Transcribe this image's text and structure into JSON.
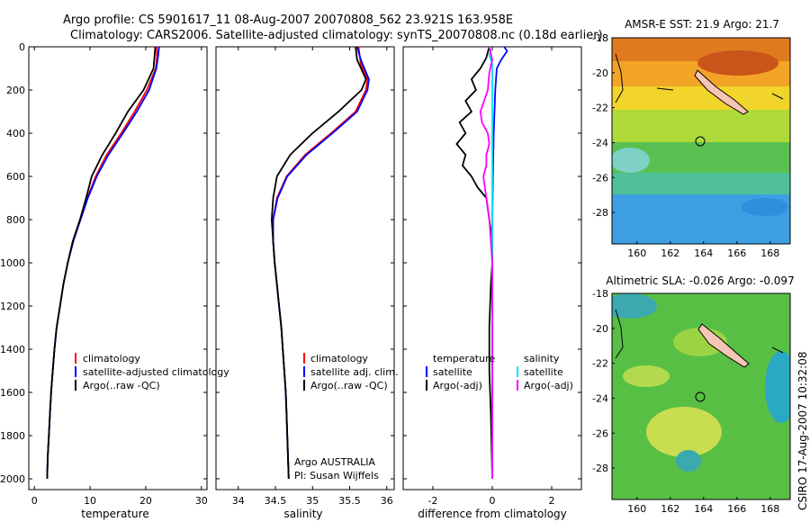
{
  "figure": {
    "title_line1": "Argo profile: CS 5901617_11 08-Aug-2007 20070808_562 23.921S 163.958E",
    "title_line2": "Climatology: CARS2006. Satellite-adjusted climatology: synTS_20070808.nc (0.18d earlier)",
    "credit": "CSIRO 17-Aug-2007 10:32:08"
  },
  "colors": {
    "climatology": "#ff0000",
    "satellite": "#0000ff",
    "argo": "#000000",
    "salinity_satellite": "#00e5ee",
    "salinity_argo": "#ff00ff"
  },
  "chart_data": [
    {
      "type": "line",
      "xlabel": "temperature",
      "xlim": [
        -1,
        31
      ],
      "ylim": [
        2050,
        0
      ],
      "xticks": [
        0,
        10,
        20,
        30
      ],
      "yticks": [
        0,
        200,
        400,
        600,
        800,
        1000,
        1200,
        1400,
        1600,
        1800,
        2000
      ],
      "legend": {
        "entries": [
          "climatology",
          "satellite-adjusted climatology",
          "Argo(..raw -QC)"
        ],
        "position": "lower-center"
      },
      "series": [
        {
          "name": "climatology",
          "color": "#ff0000",
          "points": [
            [
              22.0,
              0
            ],
            [
              22.0,
              50
            ],
            [
              21.8,
              100
            ],
            [
              20.2,
              200
            ],
            [
              18.0,
              300
            ],
            [
              15.6,
              400
            ],
            [
              13.0,
              500
            ],
            [
              11.0,
              600
            ],
            [
              9.5,
              700
            ],
            [
              8.2,
              800
            ],
            [
              6.9,
              900
            ],
            [
              6.0,
              1000
            ],
            [
              5.2,
              1100
            ],
            [
              4.6,
              1200
            ],
            [
              4.0,
              1300
            ],
            [
              3.6,
              1400
            ],
            [
              3.3,
              1500
            ],
            [
              3.0,
              1600
            ],
            [
              2.8,
              1700
            ],
            [
              2.6,
              1800
            ],
            [
              2.4,
              1900
            ],
            [
              2.3,
              2000
            ]
          ]
        },
        {
          "name": "satellite-adjusted climatology",
          "color": "#0000ff",
          "points": [
            [
              22.4,
              0
            ],
            [
              22.2,
              50
            ],
            [
              21.9,
              100
            ],
            [
              20.6,
              200
            ],
            [
              18.4,
              300
            ],
            [
              15.9,
              400
            ],
            [
              13.3,
              500
            ],
            [
              11.2,
              600
            ],
            [
              9.6,
              700
            ],
            [
              8.3,
              800
            ],
            [
              7.0,
              900
            ],
            [
              6.0,
              1000
            ],
            [
              5.2,
              1100
            ],
            [
              4.6,
              1200
            ],
            [
              4.0,
              1300
            ],
            [
              3.6,
              1400
            ],
            [
              3.3,
              1500
            ],
            [
              3.0,
              1600
            ],
            [
              2.8,
              1700
            ],
            [
              2.6,
              1800
            ],
            [
              2.4,
              1900
            ],
            [
              2.3,
              2000
            ]
          ]
        },
        {
          "name": "Argo(..raw -QC)",
          "color": "#000000",
          "points": [
            [
              21.7,
              0
            ],
            [
              21.6,
              40
            ],
            [
              21.4,
              100
            ],
            [
              19.6,
              200
            ],
            [
              16.8,
              300
            ],
            [
              14.6,
              400
            ],
            [
              12.2,
              500
            ],
            [
              10.3,
              600
            ],
            [
              9.3,
              700
            ],
            [
              8.2,
              800
            ],
            [
              6.9,
              900
            ],
            [
              6.0,
              1000
            ],
            [
              5.2,
              1100
            ],
            [
              4.6,
              1200
            ],
            [
              4.0,
              1300
            ],
            [
              3.6,
              1400
            ],
            [
              3.3,
              1500
            ],
            [
              3.0,
              1600
            ],
            [
              2.8,
              1700
            ],
            [
              2.6,
              1800
            ],
            [
              2.4,
              1900
            ],
            [
              2.3,
              2000
            ]
          ]
        }
      ]
    },
    {
      "type": "line",
      "xlabel": "salinity",
      "xlim": [
        33.7,
        36.1
      ],
      "ylim": [
        2050,
        0
      ],
      "xticks": [
        34,
        34.5,
        35,
        35.5,
        36
      ],
      "legend": {
        "entries": [
          "climatology",
          "satellite adj. clim.",
          "Argo(..raw -QC)"
        ],
        "position": "lower-center"
      },
      "annotation": [
        "Argo AUSTRALIA",
        "PI: Susan Wijffels"
      ],
      "series": [
        {
          "name": "climatology",
          "color": "#ff0000",
          "points": [
            [
              35.62,
              0
            ],
            [
              35.65,
              80
            ],
            [
              35.74,
              150
            ],
            [
              35.72,
              200
            ],
            [
              35.58,
              300
            ],
            [
              35.25,
              400
            ],
            [
              34.9,
              500
            ],
            [
              34.65,
              600
            ],
            [
              34.52,
              700
            ],
            [
              34.47,
              800
            ],
            [
              34.47,
              900
            ],
            [
              34.49,
              1000
            ],
            [
              34.52,
              1100
            ],
            [
              34.55,
              1200
            ],
            [
              34.58,
              1300
            ],
            [
              34.6,
              1400
            ],
            [
              34.62,
              1500
            ],
            [
              34.64,
              1600
            ],
            [
              34.65,
              1700
            ],
            [
              34.66,
              1800
            ],
            [
              34.67,
              1900
            ],
            [
              34.68,
              2000
            ]
          ]
        },
        {
          "name": "satellite adj. clim.",
          "color": "#0000ff",
          "points": [
            [
              35.6,
              0
            ],
            [
              35.65,
              60
            ],
            [
              35.76,
              150
            ],
            [
              35.74,
              200
            ],
            [
              35.6,
              300
            ],
            [
              35.27,
              400
            ],
            [
              34.92,
              500
            ],
            [
              34.66,
              600
            ],
            [
              34.53,
              700
            ],
            [
              34.47,
              800
            ],
            [
              34.47,
              900
            ],
            [
              34.49,
              1000
            ],
            [
              34.52,
              1100
            ],
            [
              34.55,
              1200
            ],
            [
              34.58,
              1300
            ],
            [
              34.6,
              1400
            ],
            [
              34.62,
              1500
            ],
            [
              34.64,
              1600
            ],
            [
              34.65,
              1700
            ],
            [
              34.66,
              1800
            ],
            [
              34.67,
              1900
            ],
            [
              34.68,
              2000
            ]
          ]
        },
        {
          "name": "Argo(..raw -QC)",
          "color": "#000000",
          "points": [
            [
              35.58,
              0
            ],
            [
              35.6,
              60
            ],
            [
              35.72,
              150
            ],
            [
              35.66,
              200
            ],
            [
              35.35,
              300
            ],
            [
              35.0,
              400
            ],
            [
              34.7,
              500
            ],
            [
              34.52,
              600
            ],
            [
              34.47,
              700
            ],
            [
              34.45,
              800
            ],
            [
              34.47,
              900
            ],
            [
              34.49,
              1000
            ],
            [
              34.52,
              1100
            ],
            [
              34.55,
              1200
            ],
            [
              34.58,
              1300
            ],
            [
              34.6,
              1400
            ],
            [
              34.62,
              1500
            ],
            [
              34.64,
              1600
            ],
            [
              34.65,
              1700
            ],
            [
              34.66,
              1800
            ],
            [
              34.67,
              1900
            ],
            [
              34.68,
              2000
            ]
          ]
        }
      ]
    },
    {
      "type": "line",
      "xlabel": "difference from climatology",
      "xlim": [
        -3,
        3
      ],
      "ylim": [
        2050,
        0
      ],
      "xticks": [
        -2,
        0,
        2
      ],
      "legend": {
        "groups": [
          {
            "header": "temperature",
            "entries": [
              "satellite",
              "Argo(-adj)"
            ]
          },
          {
            "header": "salinity",
            "entries": [
              "satellite",
              "Argo(-adj)"
            ]
          }
        ],
        "position": "lower-center"
      },
      "series": [
        {
          "name": "temperature satellite",
          "color": "#0000ff",
          "points": [
            [
              0.4,
              0
            ],
            [
              0.5,
              20
            ],
            [
              0.3,
              60
            ],
            [
              0.15,
              100
            ],
            [
              0.1,
              200
            ],
            [
              0.05,
              400
            ],
            [
              0.02,
              600
            ],
            [
              0.0,
              800
            ],
            [
              0.0,
              1000
            ],
            [
              0.0,
              1500
            ],
            [
              0.0,
              2000
            ]
          ]
        },
        {
          "name": "temperature Argo(-adj)",
          "color": "#000000",
          "points": [
            [
              -0.1,
              0
            ],
            [
              -0.2,
              50
            ],
            [
              -0.4,
              100
            ],
            [
              -0.7,
              150
            ],
            [
              -0.55,
              200
            ],
            [
              -0.9,
              250
            ],
            [
              -0.7,
              300
            ],
            [
              -1.1,
              350
            ],
            [
              -0.9,
              400
            ],
            [
              -1.2,
              450
            ],
            [
              -0.9,
              500
            ],
            [
              -1.0,
              550
            ],
            [
              -0.7,
              600
            ],
            [
              -0.5,
              650
            ],
            [
              -0.2,
              700
            ],
            [
              -0.1,
              800
            ],
            [
              0.0,
              900
            ],
            [
              0.0,
              1000
            ],
            [
              -0.05,
              1100
            ],
            [
              -0.1,
              1300
            ],
            [
              -0.1,
              1500
            ],
            [
              -0.05,
              1700
            ],
            [
              0.0,
              2000
            ]
          ]
        },
        {
          "name": "salinity satellite",
          "color": "#00e5ee",
          "points": [
            [
              -0.1,
              0
            ],
            [
              -0.05,
              20
            ],
            [
              -0.1,
              40
            ],
            [
              0.0,
              80
            ],
            [
              0.0,
              200
            ],
            [
              0.0,
              600
            ],
            [
              0.0,
              1000
            ],
            [
              0.0,
              1500
            ],
            [
              0.0,
              2000
            ]
          ]
        },
        {
          "name": "salinity Argo(-adj)",
          "color": "#ff00ff",
          "points": [
            [
              -0.1,
              0
            ],
            [
              0.0,
              60
            ],
            [
              -0.1,
              120
            ],
            [
              -0.15,
              200
            ],
            [
              -0.4,
              300
            ],
            [
              -0.35,
              350
            ],
            [
              -0.15,
              400
            ],
            [
              -0.1,
              450
            ],
            [
              -0.2,
              500
            ],
            [
              -0.2,
              550
            ],
            [
              -0.3,
              600
            ],
            [
              -0.2,
              700
            ],
            [
              -0.1,
              800
            ],
            [
              -0.05,
              900
            ],
            [
              0.0,
              1000
            ],
            [
              0.0,
              1200
            ],
            [
              0.0,
              2000
            ]
          ]
        }
      ]
    },
    {
      "type": "heatmap",
      "title": "AMSR-E SST: 21.9 Argo: 21.7",
      "xlim": [
        158.5,
        169.2
      ],
      "ylim": [
        -29.8,
        -18
      ],
      "xticks": [
        160,
        162,
        164,
        166,
        168
      ],
      "yticks": [
        -18,
        -20,
        -22,
        -24,
        -26,
        -28
      ],
      "marker": {
        "lon": 163.958,
        "lat": -23.921
      }
    },
    {
      "type": "heatmap",
      "title": "Altimetric SLA: -0.026 Argo: -0.097",
      "xlim": [
        158.5,
        169.2
      ],
      "ylim": [
        -29.8,
        -18
      ],
      "xticks": [
        160,
        162,
        164,
        166,
        168
      ],
      "yticks": [
        -18,
        -20,
        -22,
        -24,
        -26,
        -28
      ],
      "marker": {
        "lon": 163.958,
        "lat": -23.921
      }
    }
  ]
}
